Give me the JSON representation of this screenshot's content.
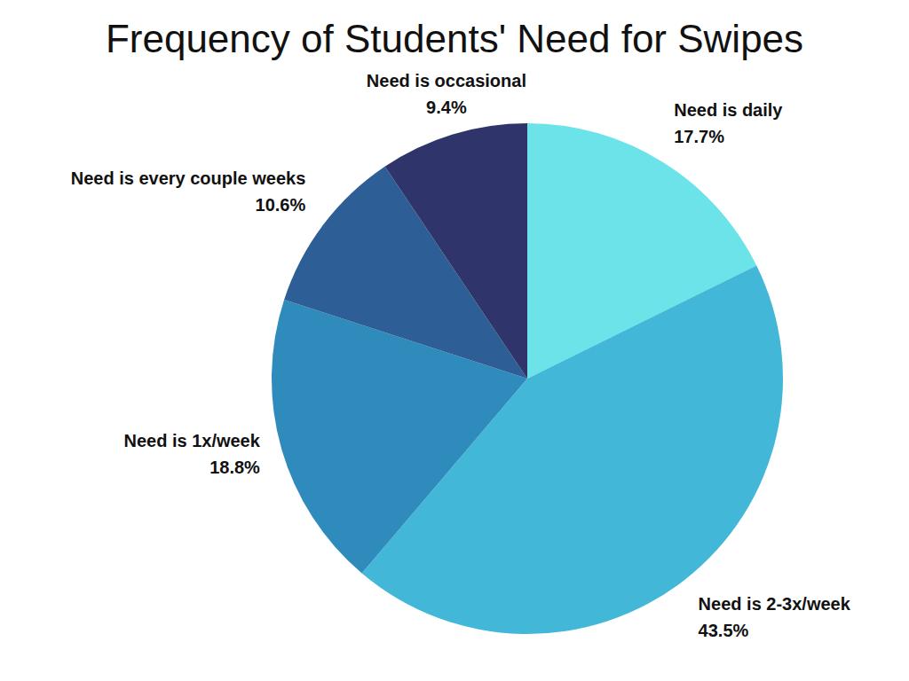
{
  "chart_data": {
    "type": "pie",
    "title": "Frequency of Students' Need for Swipes",
    "categories": [
      "Need is daily",
      "Need is 2-3x/week",
      "Need is 1x/week",
      "Need is every couple weeks",
      "Need is occasional"
    ],
    "values": [
      17.7,
      43.5,
      18.8,
      10.6,
      9.4
    ],
    "value_labels": [
      "17.7%",
      "43.5%",
      "18.8%",
      "10.6%",
      "9.4%"
    ],
    "colors": [
      "#6be3e8",
      "#42b7d7",
      "#2e8bbb",
      "#2e5e96",
      "#2f356b"
    ],
    "data_labels": true
  }
}
